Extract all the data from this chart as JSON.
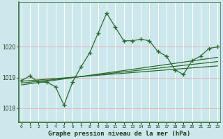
{
  "title": "Graphe pression niveau de la mer (hPa)",
  "background_color": "#cce8ec",
  "grid_color": "#b8d8dc",
  "line_color": "#2d6a2d",
  "axis_color": "#4a7a4a",
  "xlabel_color": "#1a3a1a",
  "x_ticks": [
    0,
    1,
    2,
    3,
    4,
    5,
    6,
    7,
    8,
    9,
    10,
    11,
    12,
    13,
    14,
    15,
    16,
    17,
    18,
    19,
    20,
    21,
    22,
    23
  ],
  "y_ticks": [
    1018,
    1019,
    1020
  ],
  "ylim": [
    1017.55,
    1021.45
  ],
  "xlim": [
    -0.3,
    23.3
  ],
  "main_x": [
    0,
    1,
    2,
    3,
    4,
    5,
    6,
    7,
    8,
    9,
    10,
    11,
    12,
    13,
    14,
    15,
    16,
    17,
    18,
    19,
    20,
    21,
    22,
    23
  ],
  "main_y": [
    1018.9,
    1019.05,
    1018.85,
    1018.85,
    1018.7,
    1018.1,
    1018.85,
    1019.35,
    1019.8,
    1020.45,
    1021.1,
    1020.65,
    1020.2,
    1020.2,
    1020.25,
    1020.2,
    1019.85,
    1019.7,
    1019.25,
    1019.1,
    1019.55,
    1019.7,
    1019.95,
    1020.0
  ],
  "trend1_x": [
    0,
    23
  ],
  "trend1_y": [
    1018.88,
    1019.38
  ],
  "trend2_x": [
    0,
    23
  ],
  "trend2_y": [
    1018.82,
    1019.52
  ],
  "trend3_x": [
    0,
    23
  ],
  "trend3_y": [
    1018.76,
    1019.66
  ]
}
